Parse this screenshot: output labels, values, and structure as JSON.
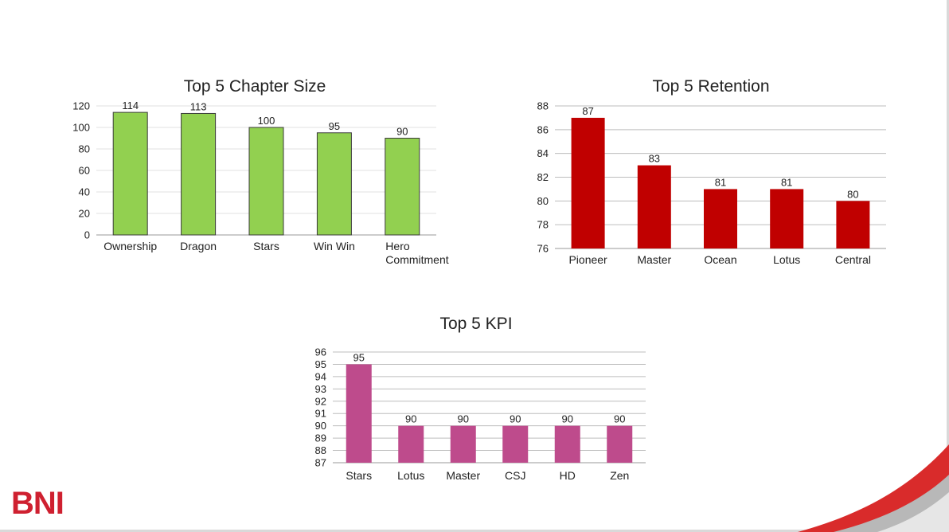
{
  "brand": {
    "logo_text": "BNI",
    "accent": "#cf2030"
  },
  "chart_data": [
    {
      "type": "bar",
      "title": "Top 5 Chapter Size",
      "categories": [
        "Ownership",
        "Dragon",
        "Stars",
        "Win Win",
        "Hero Commitment"
      ],
      "values": [
        114,
        113,
        100,
        95,
        90
      ],
      "ylim": [
        0,
        120
      ],
      "yticks": [
        0,
        20,
        40,
        60,
        80,
        100,
        120
      ],
      "color": "#92d050",
      "grid": true,
      "legend": "none"
    },
    {
      "type": "bar",
      "title": "Top 5 Retention",
      "categories": [
        "Pioneer",
        "Master",
        "Ocean",
        "Lotus",
        "Central"
      ],
      "values": [
        87,
        83,
        81,
        81,
        80
      ],
      "ylim": [
        76,
        88
      ],
      "yticks": [
        76,
        78,
        80,
        82,
        84,
        86,
        88
      ],
      "color": "#c00000",
      "grid": true,
      "legend": "none"
    },
    {
      "type": "bar",
      "title": "Top 5 KPI",
      "categories": [
        "Stars",
        "Lotus",
        "Master",
        "CSJ",
        "HD",
        "Zen"
      ],
      "values": [
        95,
        90,
        90,
        90,
        90,
        90
      ],
      "ylim": [
        87,
        96
      ],
      "yticks": [
        87,
        88,
        89,
        90,
        91,
        92,
        93,
        94,
        95,
        96
      ],
      "color": "#be4b8c",
      "grid": true,
      "legend": "none"
    }
  ]
}
